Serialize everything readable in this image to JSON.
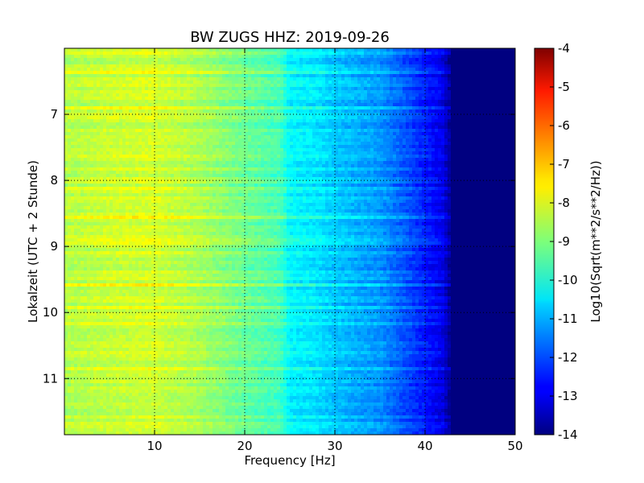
{
  "chart_data": {
    "type": "heatmap",
    "title": "BW ZUGS HHZ: 2019-09-26",
    "xlabel": "Frequency [Hz]",
    "ylabel": "Lokalzeit (UTC + 2 Stunde)",
    "xlim": [
      0,
      50
    ],
    "ylim": [
      11.85,
      6.0
    ],
    "y_inverted": true,
    "x_ticks": [
      "10",
      "20",
      "30",
      "40",
      "50"
    ],
    "x_tick_values": [
      10,
      20,
      30,
      40,
      50
    ],
    "y_ticks": [
      "7",
      "8",
      "9",
      "10",
      "11"
    ],
    "y_tick_values": [
      7,
      8,
      9,
      10,
      11
    ],
    "grid": true,
    "colormap": "jet",
    "colorbar": {
      "label": "Log10(Sqrt(m**2/s**2/Hz))",
      "range": [
        -14,
        -4
      ],
      "ticks": [
        "-4",
        "-5",
        "-6",
        "-7",
        "-8",
        "-9",
        "-10",
        "-11",
        "-12",
        "-13",
        "-14"
      ],
      "tick_values": [
        -4,
        -5,
        -6,
        -7,
        -8,
        -9,
        -10,
        -11,
        -12,
        -13,
        -14
      ]
    },
    "frequency_profile": {
      "frequency_hz": [
        0,
        5,
        10,
        15,
        20,
        24,
        25,
        28,
        30,
        33,
        35,
        38,
        40,
        42,
        43,
        50
      ],
      "log10_amplitude": [
        -8.5,
        -8.3,
        -8.2,
        -8.6,
        -9.2,
        -9.6,
        -10.3,
        -10.5,
        -10.8,
        -11.1,
        -11.3,
        -12.0,
        -12.5,
        -13.0,
        -14.0,
        -14.0
      ]
    },
    "noise_floor": -14
  }
}
